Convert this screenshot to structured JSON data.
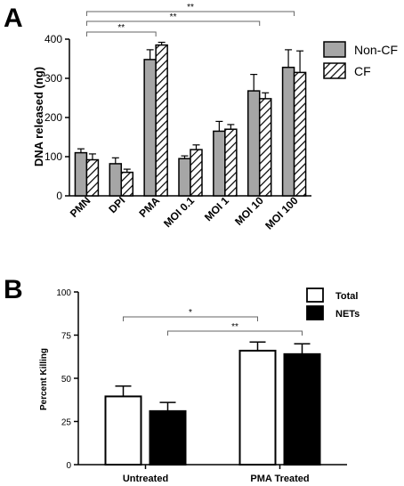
{
  "panel_a": {
    "letter": "A",
    "colors": {
      "noncf_fill": "#a6a6a6",
      "cf_fill": "#ffffff",
      "stroke": "#000000",
      "sig_line": "#666666"
    }
  },
  "panel_b": {
    "letter": "B",
    "colors": {
      "total_fill": "#ffffff",
      "nets_fill": "#000000",
      "stroke": "#000000",
      "sig_line": "#666666"
    }
  },
  "chart_data": [
    {
      "type": "bar",
      "categories": [
        "PMN",
        "DPI",
        "PMA",
        "MOI 0.1",
        "MOI 1",
        "MOI 10",
        "MOI 100"
      ],
      "series": [
        {
          "name": "Non-CF",
          "values": [
            110,
            82,
            348,
            95,
            165,
            268,
            328
          ],
          "errors": [
            10,
            15,
            25,
            7,
            25,
            42,
            45
          ],
          "color": "#a6a6a6",
          "pattern": "solid"
        },
        {
          "name": "CF",
          "values": [
            92,
            60,
            385,
            118,
            170,
            248,
            315
          ],
          "errors": [
            15,
            8,
            7,
            12,
            12,
            15,
            55
          ],
          "color": "#ffffff",
          "pattern": "hatch"
        }
      ],
      "title": "",
      "xlabel": "",
      "ylabel": "DNA released (ng)",
      "ylim": [
        0,
        400
      ],
      "yticks": [
        "0",
        "100",
        "200",
        "300",
        "400"
      ],
      "grid": false,
      "legend_position": "top-right",
      "significance": [
        {
          "from": "PMN",
          "to": "PMA",
          "label": "**"
        },
        {
          "from": "PMN",
          "to": "MOI 10",
          "label": "**"
        },
        {
          "from": "PMN",
          "to": "MOI 100",
          "label": "**"
        }
      ]
    },
    {
      "type": "bar",
      "categories": [
        "Untreated",
        "PMA Treated"
      ],
      "series": [
        {
          "name": "Total",
          "values": [
            39.5,
            66
          ],
          "errors": [
            6,
            5
          ],
          "color": "#ffffff"
        },
        {
          "name": "NETs",
          "values": [
            31,
            64
          ],
          "errors": [
            5,
            6
          ],
          "color": "#000000"
        }
      ],
      "title": "",
      "xlabel": "",
      "ylabel": "Percent Killing",
      "ylim": [
        0,
        100
      ],
      "yticks": [
        "0",
        "25",
        "50",
        "75",
        "100"
      ],
      "grid": false,
      "legend_position": "top-right",
      "significance": [
        {
          "from_series": "Total",
          "from": "Untreated",
          "to_series": "Total",
          "to": "PMA Treated",
          "label": "*"
        },
        {
          "from_series": "NETs",
          "from": "Untreated",
          "to_series": "NETs",
          "to": "PMA Treated",
          "label": "**"
        }
      ]
    }
  ]
}
